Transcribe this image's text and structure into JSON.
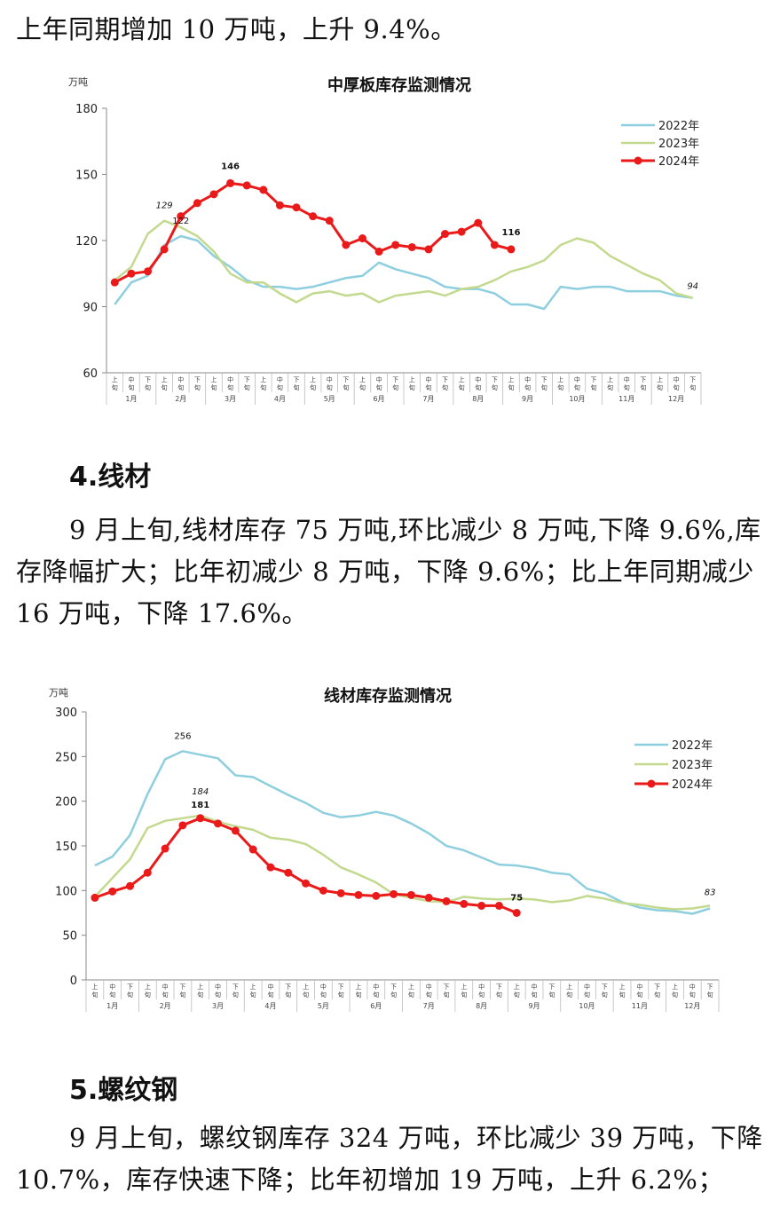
{
  "text": {
    "p1_tail": "上年同期增加 10 万吨，上升 9.4%。",
    "h4": "4.线材",
    "p2": "9 月上旬,线材库存 75 万吨,环比减少 8 万吨,下降 9.6%,库存降幅扩大；比年初减少 8 万吨，下降 9.6%；比上年同期减少 16 万吨，下降 17.6%。",
    "h5": "5.螺纹钢",
    "p3": "9 月上旬，螺纹钢库存 324 万吨，环比减少 39 万吨，下降 10.7%，库存快速下降；比年初增加 19 万吨，上升 6.2%；"
  },
  "chart_data": [
    {
      "type": "line",
      "title": "中厚板库存监测情况",
      "ylabel": "万吨",
      "ylim": [
        60,
        180
      ],
      "yticks": [
        60,
        90,
        120,
        150,
        180
      ],
      "xticks_top": [
        "上",
        "中",
        "下",
        "上",
        "中",
        "下",
        "上",
        "中",
        "下",
        "上",
        "中",
        "下",
        "上",
        "中",
        "下",
        "上",
        "中",
        "下",
        "上",
        "中",
        "下",
        "上",
        "中",
        "下",
        "上",
        "中",
        "下",
        "上",
        "中",
        "下",
        "上",
        "中",
        "下",
        "上",
        "中",
        "下"
      ],
      "xticks_bottom": [
        "旬",
        "旬",
        "旬",
        "旬",
        "旬",
        "旬",
        "旬",
        "旬",
        "旬",
        "旬",
        "旬",
        "旬",
        "旬",
        "旬",
        "旬",
        "旬",
        "旬",
        "旬",
        "旬",
        "旬",
        "旬",
        "旬",
        "旬",
        "旬",
        "旬",
        "旬",
        "旬",
        "旬",
        "旬",
        "旬",
        "旬",
        "旬",
        "旬",
        "旬",
        "旬",
        "旬"
      ],
      "months": [
        "1月",
        "2月",
        "3月",
        "4月",
        "5月",
        "6月",
        "7月",
        "8月",
        "9月",
        "10月",
        "11月",
        "12月"
      ],
      "series": [
        {
          "name": "2022年",
          "color": "#8ecfdf",
          "values": [
            91,
            101,
            104,
            118,
            122,
            120,
            113,
            108,
            102,
            99,
            99,
            98,
            99,
            101,
            103,
            104,
            110,
            107,
            105,
            103,
            99,
            98,
            98,
            96,
            91,
            91,
            89,
            99,
            98,
            99,
            99,
            97,
            97,
            97,
            95,
            94
          ]
        },
        {
          "name": "2023年",
          "color": "#c3da8e",
          "values": [
            102,
            108,
            123,
            129,
            126,
            122,
            115,
            105,
            101,
            101,
            96,
            92,
            96,
            97,
            95,
            96,
            92,
            95,
            96,
            97,
            95,
            98,
            99,
            102,
            106,
            108,
            111,
            118,
            121,
            119,
            113,
            109,
            105,
            102,
            96,
            94
          ]
        },
        {
          "name": "2024年",
          "color": "#ea1a1a",
          "values": [
            101,
            105,
            106,
            116,
            131,
            137,
            141,
            146,
            145,
            143,
            136,
            135,
            131,
            129,
            118,
            121,
            115,
            118,
            117,
            116,
            123,
            124,
            128,
            118,
            116
          ]
        }
      ],
      "annotations": [
        {
          "label": "129",
          "index": 3,
          "series": 1,
          "italic": true
        },
        {
          "label": "122",
          "index": 4,
          "series": 0
        },
        {
          "label": "146",
          "index": 7,
          "series": 2,
          "bold": true
        },
        {
          "label": "116",
          "index": 24,
          "series": 2,
          "bold": true
        },
        {
          "label": "94",
          "index": 35,
          "series": 1,
          "italic": true
        }
      ]
    },
    {
      "type": "line",
      "title": "线材库存监测情况",
      "ylabel": "万吨",
      "ylim": [
        0,
        300
      ],
      "yticks": [
        0,
        50,
        100,
        150,
        200,
        250,
        300
      ],
      "xticks_top": [
        "上",
        "中",
        "下",
        "上",
        "中",
        "下",
        "上",
        "中",
        "下",
        "上",
        "中",
        "下",
        "上",
        "中",
        "下",
        "上",
        "中",
        "下",
        "上",
        "中",
        "下",
        "上",
        "中",
        "下",
        "上",
        "中",
        "下",
        "上",
        "中",
        "下",
        "上",
        "中",
        "下",
        "上",
        "中",
        "下"
      ],
      "xticks_bottom": [
        "旬",
        "旬",
        "旬",
        "旬",
        "旬",
        "旬",
        "旬",
        "旬",
        "旬",
        "旬",
        "旬",
        "旬",
        "旬",
        "旬",
        "旬",
        "旬",
        "旬",
        "旬",
        "旬",
        "旬",
        "旬",
        "旬",
        "旬",
        "旬",
        "旬",
        "旬",
        "旬",
        "旬",
        "旬",
        "旬",
        "旬",
        "旬",
        "旬",
        "旬",
        "旬",
        "旬"
      ],
      "months": [
        "1月",
        "2月",
        "3月",
        "4月",
        "5月",
        "6月",
        "7月",
        "8月",
        "9月",
        "10月",
        "11月",
        "12月"
      ],
      "series": [
        {
          "name": "2022年",
          "color": "#8ecfdf",
          "values": [
            128,
            138,
            162,
            208,
            247,
            256,
            252,
            248,
            229,
            227,
            217,
            207,
            198,
            187,
            182,
            184,
            188,
            184,
            175,
            164,
            150,
            145,
            137,
            129,
            128,
            125,
            120,
            118,
            102,
            97,
            87,
            81,
            78,
            77,
            74,
            80
          ]
        },
        {
          "name": "2023年",
          "color": "#c3da8e",
          "values": [
            93,
            114,
            135,
            170,
            178,
            181,
            184,
            177,
            172,
            168,
            159,
            157,
            152,
            140,
            126,
            118,
            109,
            96,
            92,
            88,
            87,
            93,
            91,
            90,
            91,
            90,
            87,
            89,
            94,
            91,
            86,
            84,
            81,
            79,
            80,
            83
          ]
        },
        {
          "name": "2024年",
          "color": "#ea1a1a",
          "values": [
            92,
            99,
            105,
            120,
            147,
            173,
            181,
            175,
            167,
            146,
            126,
            120,
            108,
            100,
            97,
            95,
            94,
            96,
            95,
            92,
            88,
            85,
            83,
            83,
            75
          ]
        }
      ],
      "annotations": [
        {
          "label": "256",
          "index": 5,
          "series": 0
        },
        {
          "label": "184",
          "index": 6,
          "series": 1,
          "italic": true
        },
        {
          "label": "181",
          "index": 6,
          "series": 2,
          "bold": true
        },
        {
          "label": "75",
          "index": 24,
          "series": 2,
          "bold": true
        },
        {
          "label": "83",
          "index": 35,
          "series": 1,
          "italic": true
        }
      ]
    }
  ]
}
